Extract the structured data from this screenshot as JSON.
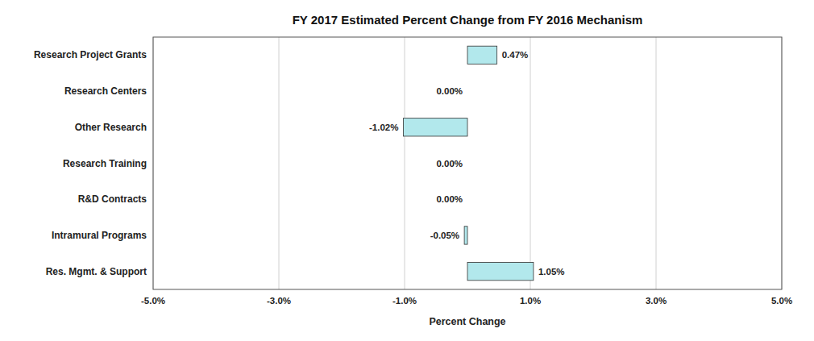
{
  "chart_data": {
    "type": "bar",
    "orientation": "horizontal",
    "title": "FY 2017 Estimated Percent Change from FY 2016 Mechanism",
    "categories": [
      "Research Project Grants",
      "Research Centers",
      "Other Research",
      "Research Training",
      "R&D Contracts",
      "Intramural Programs",
      "Res. Mgmt. & Support"
    ],
    "values": [
      0.47,
      0.0,
      -1.02,
      0.0,
      0.0,
      -0.05,
      1.05
    ],
    "value_labels": [
      "0.47%",
      "0.00%",
      "-1.02%",
      "0.00%",
      "0.00%",
      "-0.05%",
      "1.05%"
    ],
    "data_labels": true,
    "color": "#b2e8ec",
    "xlabel": "Percent Change",
    "xlim": [
      -5.0,
      5.0
    ],
    "xticks": [
      {
        "value": -5.0,
        "label": "-5.0%"
      },
      {
        "value": -3.0,
        "label": "-3.0%"
      },
      {
        "value": -1.0,
        "label": "-1.0%"
      },
      {
        "value": 1.0,
        "label": "1.0%"
      },
      {
        "value": 3.0,
        "label": "3.0%"
      },
      {
        "value": 5.0,
        "label": "5.0%"
      }
    ],
    "grid": true
  }
}
